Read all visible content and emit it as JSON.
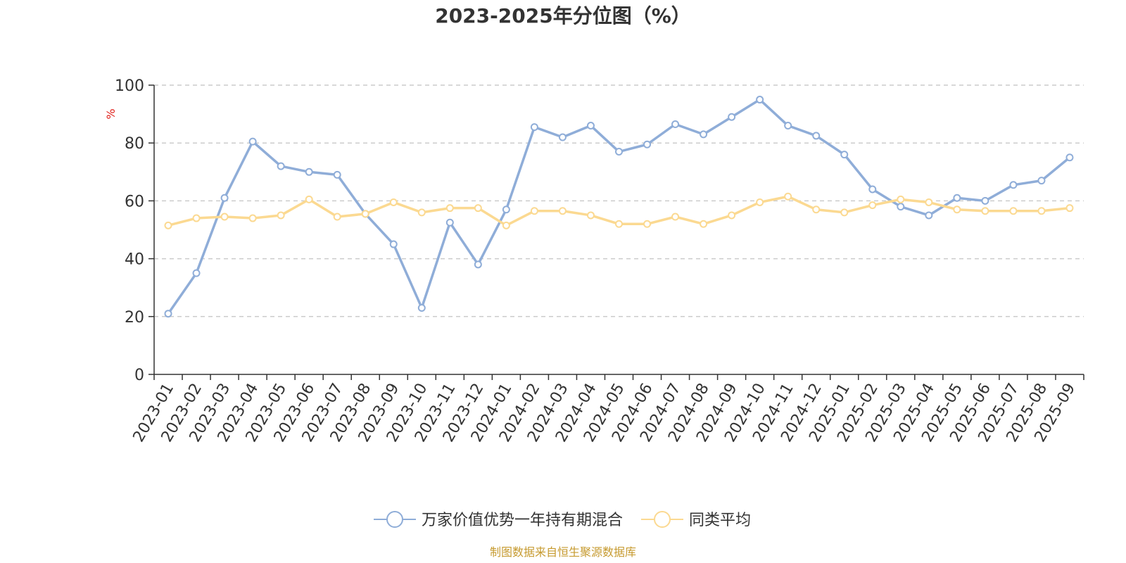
{
  "chart_data": {
    "type": "line",
    "title": "2023-2025年分位图（%）",
    "ylabel": "%",
    "ylim": [
      0,
      100
    ],
    "yticks": [
      "0",
      "20",
      "40",
      "60",
      "80",
      "100"
    ],
    "grid": true,
    "legend_position": "bottom",
    "categories": [
      "2023-01",
      "2023-02",
      "2023-03",
      "2023-04",
      "2023-05",
      "2023-06",
      "2023-07",
      "2023-08",
      "2023-09",
      "2023-10",
      "2023-11",
      "2023-12",
      "2024-01",
      "2024-02",
      "2024-03",
      "2024-04",
      "2024-05",
      "2024-06",
      "2024-07",
      "2024-08",
      "2024-09",
      "2024-10",
      "2024-11",
      "2024-12",
      "2025-01",
      "2025-02",
      "2025-03",
      "2025-04",
      "2025-05",
      "2025-06",
      "2025-07",
      "2025-08",
      "2025-09"
    ],
    "series": [
      {
        "name": "万家价值优势一年持有期混合",
        "color": "#8fadd8",
        "values": [
          21,
          35,
          61,
          80.5,
          72,
          70,
          69,
          55.5,
          45,
          23,
          52.5,
          38,
          57,
          85.5,
          82,
          86,
          77,
          79.5,
          86.5,
          83,
          89,
          95,
          86,
          82.5,
          76,
          64,
          58,
          55,
          61,
          60,
          65.5,
          67,
          75
        ]
      },
      {
        "name": "同类平均",
        "color": "#fbd991",
        "values": [
          51.5,
          54,
          54.5,
          54,
          55,
          60.5,
          54.5,
          55.5,
          59.5,
          56,
          57.5,
          57.5,
          51.5,
          56.5,
          56.5,
          55,
          52,
          52,
          54.5,
          52,
          55,
          59.5,
          61.5,
          57,
          56,
          58.5,
          60.5,
          59.5,
          57,
          56.5,
          56.5,
          56.5,
          57.5
        ]
      }
    ]
  },
  "source_note": "制图数据来自恒生聚源数据库"
}
